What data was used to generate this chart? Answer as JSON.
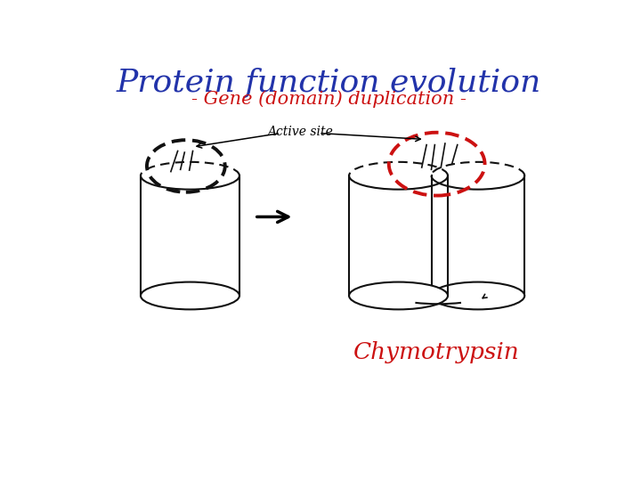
{
  "title": "Protein function evolution",
  "subtitle": "- Gene (domain) duplication -",
  "label_active_site": "Active site",
  "label_chymotrypsin": "Chymotrypsin",
  "title_color": "#2233aa",
  "subtitle_color": "#cc1111",
  "chymotrypsin_color": "#cc1111",
  "active_site_dashed_color_left": "#111111",
  "active_site_dashed_color_right": "#cc1111",
  "cylinder_color": "#111111",
  "bg_color": "#ffffff",
  "title_fontsize": 26,
  "subtitle_fontsize": 15,
  "active_site_fontsize": 10,
  "chymotrypsin_fontsize": 19
}
